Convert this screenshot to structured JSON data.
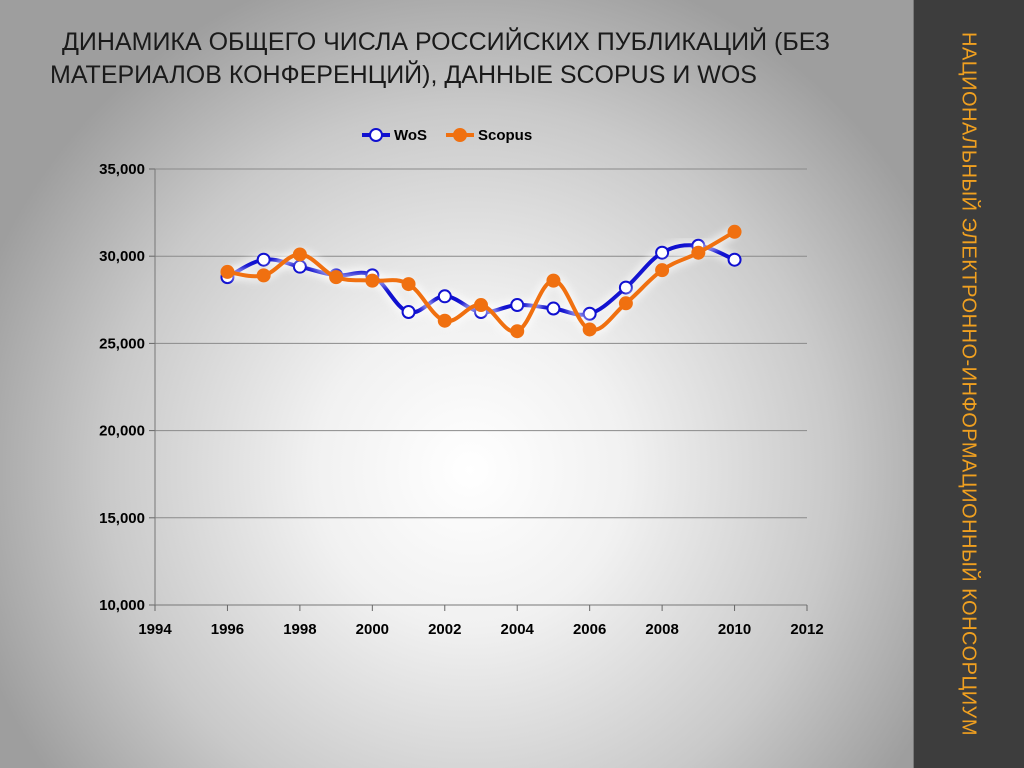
{
  "slide": {
    "title_line1": "ДИНАМИКА ОБЩЕГО ЧИСЛА РОССИЙСКИХ ПУБЛИКАЦИЙ (БЕЗ",
    "title_line2": "МАТЕРИАЛОВ КОНФЕРЕНЦИЙ), ДАННЫЕ  SCOPUS И WOS",
    "sidebar_text": "НАЦИОНАЛЬНЫЙ ЭЛЕКТРОННО-ИНФОРМАЦИОННЫЙ КОНСОРЦИУМ",
    "sidebar_color": "#f0a020"
  },
  "chart_data": {
    "type": "line",
    "title": "",
    "xlabel": "",
    "ylabel": "",
    "xlim": [
      1994,
      2012
    ],
    "ylim": [
      10000,
      35000
    ],
    "x_ticks": [
      "1994",
      "1996",
      "1998",
      "2000",
      "2002",
      "2004",
      "2006",
      "2008",
      "2010",
      "2012"
    ],
    "y_ticks": [
      "10,000",
      "15,000",
      "20,000",
      "25,000",
      "30,000",
      "35,000"
    ],
    "grid": "horizontal",
    "legend_position": "top-center",
    "x": [
      1996,
      1997,
      1998,
      1999,
      2000,
      2001,
      2002,
      2003,
      2004,
      2005,
      2006,
      2007,
      2008,
      2009,
      2010
    ],
    "series": [
      {
        "name": "WoS",
        "color": "#1010d0",
        "marker": "open-circle",
        "values": [
          28800,
          29800,
          29400,
          28900,
          28900,
          26800,
          27700,
          26800,
          27200,
          27000,
          26700,
          28200,
          30200,
          30600,
          29800
        ]
      },
      {
        "name": "Scopus",
        "color": "#f07010",
        "marker": "filled-circle",
        "values": [
          29100,
          28900,
          30100,
          28800,
          28600,
          28400,
          26300,
          27200,
          25700,
          28600,
          25800,
          27300,
          29200,
          30200,
          31400
        ]
      }
    ]
  }
}
